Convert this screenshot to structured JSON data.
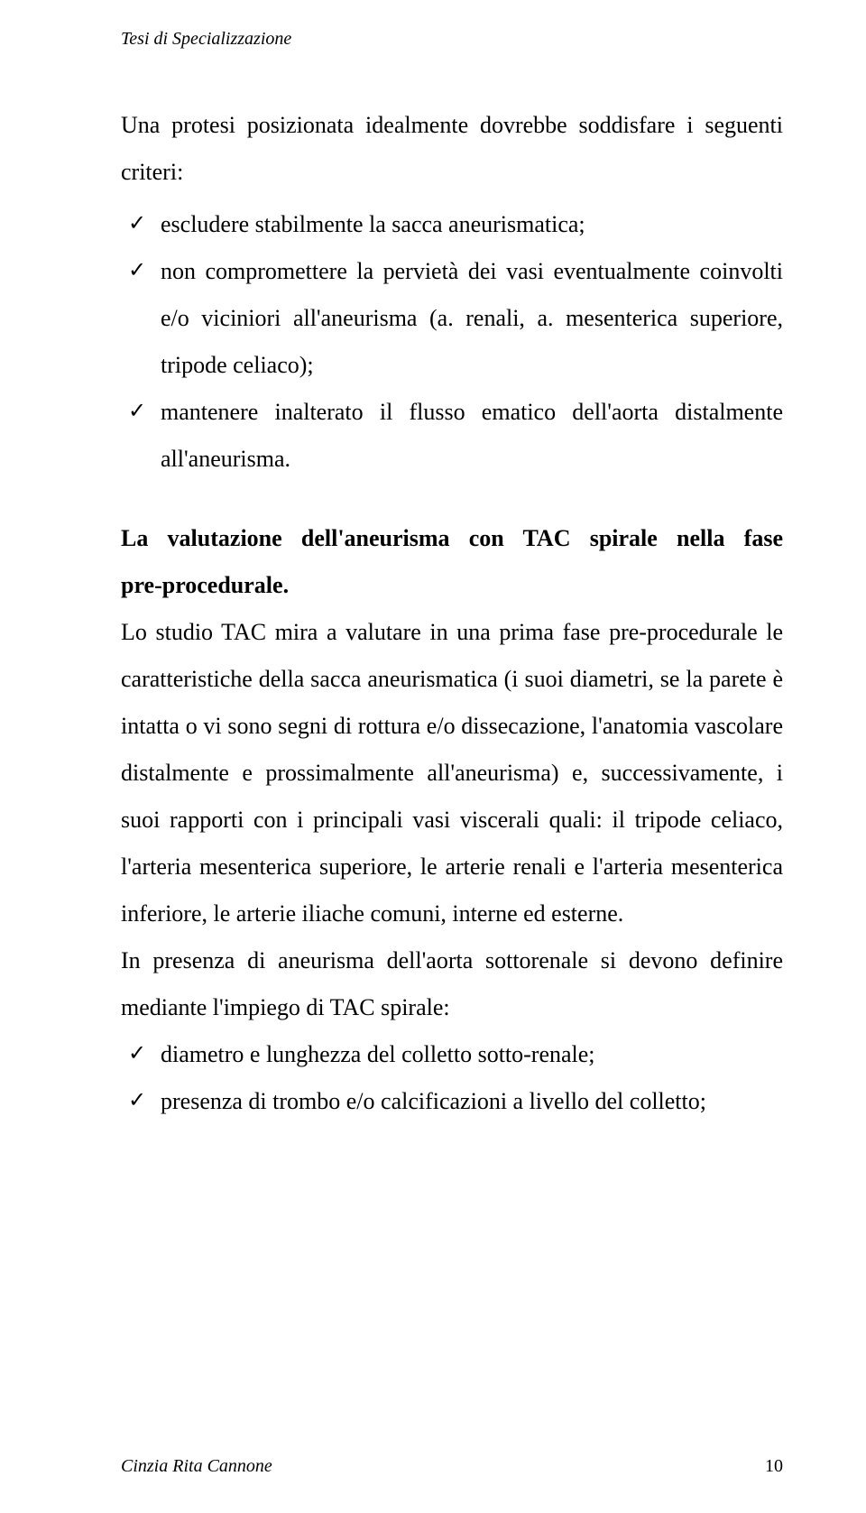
{
  "running_head": "Tesi di Specializzazione",
  "intro_paragraph": "Una protesi posizionata idealmente dovrebbe  soddisfare i seguenti criteri:",
  "criteria": [
    "escludere stabilmente la sacca aneurismatica;",
    "non compromettere la pervietà dei vasi eventualmente coinvolti e/o viciniori all'aneurisma (a. renali, a. mesenterica superiore, tripode celiaco);",
    "mantenere inalterato il flusso ematico dell'aorta distalmente all'aneurisma."
  ],
  "section_heading_a": "La valutazione dell'aneurisma con TAC spirale nella fase ",
  "section_heading_b": "pre-procedurale.",
  "body_p1": "Lo studio TAC mira a valutare in una prima fase pre-procedurale le caratteristiche della sacca aneurismatica (i suoi diametri, se la parete è intatta o vi sono segni di rottura e/o dissecazione, l'anatomia vascolare distalmente e prossimalmente all'aneurisma) e, successivamente, i suoi rapporti con i principali vasi viscerali quali: il tripode celiaco, l'arteria mesenterica superiore, le arterie renali e l'arteria mesenterica inferiore, le arterie iliache comuni,  interne ed esterne.",
  "body_p2": "In presenza di aneurisma dell'aorta sottorenale si devono definire mediante l'impiego di TAC spirale:",
  "tac_items": [
    "diametro e lunghezza del colletto sotto-renale;",
    "presenza di trombo e/o calcificazioni a livello del colletto;"
  ],
  "footer_author": "Cinzia Rita Cannone",
  "footer_page": "10",
  "checkmark": "✓"
}
